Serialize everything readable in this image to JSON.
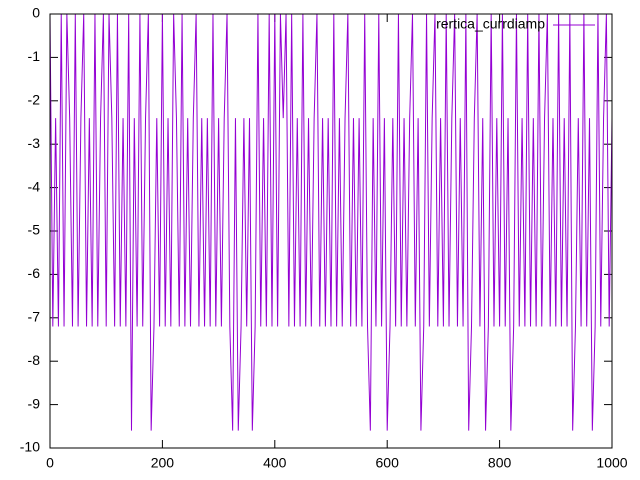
{
  "chart_data": {
    "type": "line",
    "x": [
      0,
      5,
      10,
      15,
      20,
      25,
      30,
      35,
      40,
      45,
      50,
      55,
      60,
      65,
      70,
      75,
      80,
      85,
      90,
      95,
      100,
      105,
      110,
      115,
      120,
      125,
      130,
      135,
      140,
      145,
      150,
      155,
      160,
      165,
      170,
      175,
      180,
      185,
      190,
      195,
      200,
      205,
      210,
      215,
      220,
      225,
      230,
      235,
      240,
      245,
      250,
      255,
      260,
      265,
      270,
      275,
      280,
      285,
      290,
      295,
      300,
      305,
      310,
      315,
      320,
      325,
      330,
      335,
      340,
      345,
      350,
      355,
      360,
      365,
      370,
      375,
      380,
      385,
      390,
      395,
      400,
      405,
      410,
      415,
      420,
      425,
      430,
      435,
      440,
      445,
      450,
      455,
      460,
      465,
      470,
      475,
      480,
      485,
      490,
      495,
      500,
      505,
      510,
      515,
      520,
      525,
      530,
      535,
      540,
      545,
      550,
      555,
      560,
      565,
      570,
      575,
      580,
      585,
      590,
      595,
      600,
      605,
      610,
      615,
      620,
      625,
      630,
      635,
      640,
      645,
      650,
      655,
      660,
      665,
      670,
      675,
      680,
      685,
      690,
      695,
      700,
      705,
      710,
      715,
      720,
      725,
      730,
      735,
      740,
      745,
      750,
      755,
      760,
      765,
      770,
      775,
      780,
      785,
      790,
      795,
      800,
      805,
      810,
      815,
      820,
      825,
      830,
      835,
      840,
      845,
      850,
      855,
      860,
      865,
      870,
      875,
      880,
      885,
      890,
      895,
      900,
      905,
      910,
      915,
      920,
      925,
      930,
      935,
      940,
      945,
      950,
      955,
      960,
      965,
      970,
      975,
      980,
      985,
      990,
      995,
      1000
    ],
    "series": [
      {
        "name": "rertica_currdiamp",
        "color": "#9400d3",
        "values": [
          0,
          -7.2,
          -2.4,
          -7.2,
          0,
          -7.2,
          0,
          -2.4,
          -7.2,
          0,
          -7.2,
          -2.4,
          0,
          -7.2,
          -2.4,
          -7.2,
          0,
          -7.2,
          -2.4,
          0,
          -7.2,
          0,
          -2.4,
          -7.2,
          0,
          -7.2,
          -2.4,
          -7.2,
          0,
          -9.6,
          -2.4,
          -7.2,
          0,
          -7.2,
          -2.4,
          0,
          -9.6,
          -7.2,
          -2.4,
          -7.2,
          0,
          -7.2,
          -2.4,
          -7.2,
          0,
          -2.4,
          -7.2,
          0,
          -7.2,
          -2.4,
          -7.2,
          -2.4,
          0,
          -7.2,
          -2.4,
          -7.2,
          -2.4,
          -7.2,
          0,
          -7.2,
          -2.4,
          -7.2,
          -2.4,
          0,
          -7.2,
          -9.6,
          -2.4,
          -9.6,
          -7.2,
          -2.4,
          -7.2,
          -2.4,
          -9.6,
          -7.2,
          0,
          -7.2,
          -2.4,
          -7.2,
          0,
          -7.2,
          0,
          -7.2,
          0,
          -2.4,
          0,
          -7.2,
          0,
          -7.2,
          -2.4,
          -7.2,
          0,
          -7.2,
          -2.4,
          -7.2,
          -2.4,
          0,
          -7.2,
          -2.4,
          -7.2,
          -2.4,
          -7.2,
          0,
          -7.2,
          -2.4,
          -7.2,
          -2.4,
          0,
          -7.2,
          -2.4,
          -7.2,
          -2.4,
          -7.2,
          0,
          -7.2,
          -9.6,
          -2.4,
          -7.2,
          0,
          -7.2,
          -2.4,
          -9.6,
          -7.2,
          -2.4,
          -7.2,
          0,
          -7.2,
          -2.4,
          -7.2,
          -2.4,
          0,
          -7.2,
          -2.4,
          -9.6,
          -7.2,
          0,
          -7.2,
          -2.4,
          0,
          -7.2,
          -2.4,
          -7.2,
          0,
          -7.2,
          -2.4,
          0,
          -7.2,
          -2.4,
          -7.2,
          0,
          -9.6,
          -7.2,
          -2.4,
          0,
          -7.2,
          -2.4,
          -9.6,
          -7.2,
          0,
          -7.2,
          -2.4,
          -7.2,
          0,
          -7.2,
          -2.4,
          -9.6,
          -7.2,
          0,
          -7.2,
          -2.4,
          -7.2,
          0,
          -7.2,
          -2.4,
          -7.2,
          0,
          -7.2,
          -2.4,
          0,
          -7.2,
          -2.4,
          -7.2,
          0,
          -7.2,
          -2.4,
          -7.2,
          0,
          -9.6,
          -7.2,
          -2.4,
          -7.2,
          0,
          -7.2,
          -2.4,
          -9.6,
          -7.2,
          0,
          -7.2,
          -2.4,
          0,
          -7.2,
          -2.4
        ]
      }
    ],
    "xlim": [
      0,
      1000
    ],
    "xticks": [
      0,
      200,
      400,
      600,
      800,
      1000
    ],
    "ylim": [
      -10,
      0
    ],
    "yticks": [
      -10,
      -9,
      -8,
      -7,
      -6,
      -5,
      -4,
      -3,
      -2,
      -1,
      0
    ],
    "legend": "top-right"
  }
}
